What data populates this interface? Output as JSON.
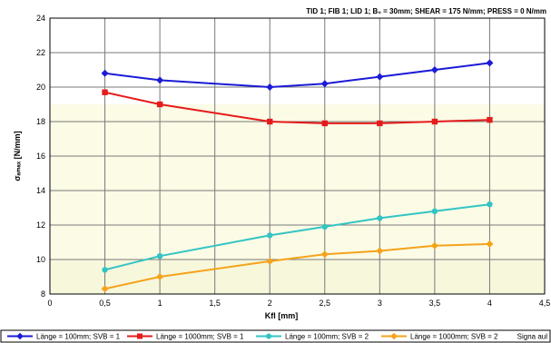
{
  "chart_data": {
    "type": "line",
    "header": "TID 1; FIB 1; LID 1; B₀ = 30mm; SHEAR = 175 N/mm; PRESS = 0 N/mm",
    "xlabel": "Kfl [mm]",
    "ylabel": "σₐₘₐₓ [N/mm]",
    "xlim": [
      0,
      4.5
    ],
    "ylim": [
      8,
      24
    ],
    "xticks": [
      0,
      0.5,
      1,
      1.5,
      2,
      2.5,
      3,
      3.5,
      4,
      4.5
    ],
    "xtick_labels": [
      "0",
      "0,5",
      "1",
      "1,5",
      "2",
      "2,5",
      "3",
      "3,5",
      "4",
      "4,5"
    ],
    "yticks": [
      8,
      10,
      12,
      14,
      16,
      18,
      20,
      22,
      24
    ],
    "ytick_labels": [
      "8",
      "10",
      "12",
      "14",
      "16",
      "18",
      "20",
      "22",
      "24"
    ],
    "grid": true,
    "legend_position": "bottom",
    "legend_extra": "Signa aul",
    "background_bands": [
      {
        "y_from": 8,
        "y_to": 10,
        "color": "#f7f7dc"
      },
      {
        "y_from": 10,
        "y_to": 19,
        "color": "#fbfbe6"
      }
    ],
    "series": [
      {
        "name": "Länge = 100mm; SVB = 1",
        "color": "#1b1bd6",
        "marker": "diamond",
        "x": [
          0.5,
          1,
          2,
          2.5,
          3,
          3.5,
          4
        ],
        "y": [
          20.8,
          20.4,
          20.0,
          20.2,
          20.6,
          21.0,
          21.4
        ]
      },
      {
        "name": "Länge = 1000mm; SVB = 1",
        "color": "#e61b1b",
        "marker": "square",
        "x": [
          0.5,
          1,
          2,
          2.5,
          3,
          3.5,
          4
        ],
        "y": [
          19.7,
          19.0,
          18.0,
          17.9,
          17.9,
          18.0,
          18.1
        ]
      },
      {
        "name": "Länge = 100mm; SVB = 2",
        "color": "#33c4c4",
        "marker": "circle",
        "x": [
          0.5,
          1,
          2,
          2.5,
          3,
          3.5,
          4
        ],
        "y": [
          9.4,
          10.2,
          11.4,
          11.9,
          12.4,
          12.8,
          13.2
        ]
      },
      {
        "name": "Länge = 1000mm; SVB = 2",
        "color": "#f5a31b",
        "marker": "diamond",
        "x": [
          0.5,
          1,
          2,
          2.5,
          3,
          3.5,
          4
        ],
        "y": [
          8.3,
          9.0,
          9.9,
          10.3,
          10.5,
          10.8,
          10.9
        ]
      }
    ]
  }
}
